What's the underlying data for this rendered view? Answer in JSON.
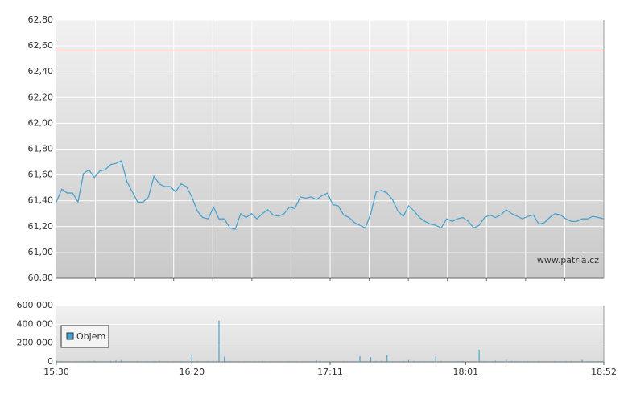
{
  "chart_data": [
    {
      "type": "line",
      "color": "#4aa3cf",
      "x": [
        "15:30",
        "15:32",
        "15:34",
        "15:36",
        "15:38",
        "15:40",
        "15:42",
        "15:44",
        "15:46",
        "15:48",
        "15:50",
        "15:52",
        "15:54",
        "15:56",
        "15:58",
        "16:00",
        "16:02",
        "16:04",
        "16:06",
        "16:08",
        "16:10",
        "16:12",
        "16:14",
        "16:16",
        "16:18",
        "16:20",
        "16:22",
        "16:24",
        "16:26",
        "16:28",
        "16:30",
        "16:32",
        "16:34",
        "16:36",
        "16:38",
        "16:40",
        "16:42",
        "16:44",
        "16:46",
        "16:48",
        "16:50",
        "16:52",
        "16:54",
        "16:56",
        "16:58",
        "17:00",
        "17:02",
        "17:04",
        "17:06",
        "17:08",
        "17:10",
        "17:12",
        "17:14",
        "17:16",
        "17:18",
        "17:20",
        "17:22",
        "17:24",
        "17:26",
        "17:28",
        "17:30",
        "17:32",
        "17:34",
        "17:36",
        "17:38",
        "17:40",
        "17:42",
        "17:44",
        "17:46",
        "17:48",
        "17:50",
        "17:52",
        "17:54",
        "17:56",
        "17:58",
        "18:00",
        "18:02",
        "18:04",
        "18:06",
        "18:08",
        "18:10",
        "18:12",
        "18:14",
        "18:16",
        "18:18",
        "18:20",
        "18:22",
        "18:24",
        "18:26",
        "18:28",
        "18:30",
        "18:32",
        "18:34",
        "18:36",
        "18:38",
        "18:40",
        "18:42",
        "18:44",
        "18:46",
        "18:48",
        "18:50",
        "18:52"
      ],
      "values": [
        61.39,
        61.49,
        61.46,
        61.46,
        61.39,
        61.61,
        61.64,
        61.58,
        61.63,
        61.64,
        61.68,
        61.69,
        61.71,
        61.55,
        61.47,
        61.39,
        61.39,
        61.43,
        61.59,
        61.53,
        61.51,
        61.51,
        61.47,
        61.53,
        61.51,
        61.43,
        61.32,
        61.27,
        61.26,
        61.35,
        61.26,
        61.26,
        61.19,
        61.18,
        61.3,
        61.27,
        61.3,
        61.26,
        61.3,
        61.33,
        61.29,
        61.28,
        61.3,
        61.35,
        61.34,
        61.43,
        61.42,
        61.43,
        61.41,
        61.44,
        61.46,
        61.37,
        61.36,
        61.29,
        61.27,
        61.23,
        61.21,
        61.19,
        61.3,
        61.47,
        61.48,
        61.46,
        61.41,
        61.32,
        61.28,
        61.36,
        61.32,
        61.27,
        61.24,
        61.22,
        61.21,
        61.19,
        61.26,
        61.24,
        61.26,
        61.27,
        61.24,
        61.19,
        61.21,
        61.27,
        61.29,
        61.27,
        61.29,
        61.33,
        61.3,
        61.28,
        61.26,
        61.28,
        61.29,
        61.22,
        61.23,
        61.27,
        61.3,
        61.29,
        61.26,
        61.24,
        61.24,
        61.26,
        61.26,
        61.28,
        61.27,
        61.26
      ],
      "reference_line": 62.56,
      "reference_color": "#e0504a",
      "xlim": [
        "15:30",
        "18:52"
      ],
      "ylim": [
        60.8,
        62.8
      ],
      "yticks": [
        {
          "value": 60.8,
          "label": "60,80"
        },
        {
          "value": 61.0,
          "label": "61,00"
        },
        {
          "value": 61.2,
          "label": "61,20"
        },
        {
          "value": 61.4,
          "label": "61,40"
        },
        {
          "value": 61.6,
          "label": "61,60"
        },
        {
          "value": 61.8,
          "label": "61,80"
        },
        {
          "value": 62.0,
          "label": "62,00"
        },
        {
          "value": 62.2,
          "label": "62,20"
        },
        {
          "value": 62.4,
          "label": "62,40"
        },
        {
          "value": 62.6,
          "label": "62,60"
        },
        {
          "value": 62.8,
          "label": "62,80"
        }
      ],
      "grid": true,
      "watermark": "www.patria.cz"
    },
    {
      "type": "bar",
      "x": [
        "15:30",
        "15:32",
        "15:34",
        "15:36",
        "15:38",
        "15:40",
        "15:42",
        "15:44",
        "15:46",
        "15:48",
        "15:50",
        "15:52",
        "15:54",
        "15:56",
        "15:58",
        "16:00",
        "16:02",
        "16:04",
        "16:06",
        "16:08",
        "16:10",
        "16:12",
        "16:14",
        "16:16",
        "16:18",
        "16:20",
        "16:22",
        "16:24",
        "16:26",
        "16:28",
        "16:30",
        "16:32",
        "16:34",
        "16:36",
        "16:38",
        "16:40",
        "16:42",
        "16:44",
        "16:46",
        "16:48",
        "16:50",
        "16:52",
        "16:54",
        "16:56",
        "16:58",
        "17:00",
        "17:02",
        "17:04",
        "17:06",
        "17:08",
        "17:10",
        "17:12",
        "17:14",
        "17:16",
        "17:18",
        "17:20",
        "17:22",
        "17:24",
        "17:26",
        "17:28",
        "17:30",
        "17:32",
        "17:34",
        "17:36",
        "17:38",
        "17:40",
        "17:42",
        "17:44",
        "17:46",
        "17:48",
        "17:50",
        "17:52",
        "17:54",
        "17:56",
        "17:58",
        "18:00",
        "18:02",
        "18:04",
        "18:06",
        "18:08",
        "18:10",
        "18:12",
        "18:14",
        "18:16",
        "18:18",
        "18:20",
        "18:22",
        "18:24",
        "18:26",
        "18:28",
        "18:30",
        "18:32",
        "18:34",
        "18:36",
        "18:38",
        "18:40",
        "18:42",
        "18:44",
        "18:46",
        "18:48",
        "18:50",
        "18:52"
      ],
      "series": [
        {
          "name": "Objem",
          "color": "#4aa3cf",
          "values": [
            15000,
            8000,
            6000,
            5000,
            6000,
            7000,
            9000,
            12000,
            8000,
            6000,
            10000,
            14000,
            20000,
            7000,
            6000,
            9000,
            5000,
            6000,
            8000,
            12000,
            6000,
            5000,
            7000,
            8000,
            6000,
            75000,
            10000,
            6000,
            8000,
            7000,
            440000,
            55000,
            8000,
            6000,
            5000,
            7000,
            5000,
            6000,
            9000,
            5000,
            6000,
            8000,
            5000,
            7000,
            6000,
            5000,
            8000,
            6000,
            15000,
            5000,
            7000,
            9000,
            6000,
            8000,
            5000,
            7000,
            60000,
            8000,
            50000,
            10000,
            12000,
            70000,
            8000,
            6000,
            9000,
            20000,
            10000,
            7000,
            8000,
            6000,
            60000,
            9000,
            7000,
            6000,
            8000,
            10000,
            7000,
            8000,
            130000,
            9000,
            7000,
            12000,
            8000,
            20000,
            10000,
            8000,
            6000,
            9000,
            7000,
            10000,
            8000,
            6000,
            9000,
            7000,
            8000,
            10000,
            6000,
            20000,
            8000,
            7000,
            9000,
            6000
          ]
        }
      ],
      "xlim": [
        "15:30",
        "18:52"
      ],
      "xticks": [
        "15:30",
        "16:20",
        "17:11",
        "18:01",
        "18:52"
      ],
      "ylim": [
        0,
        600000
      ],
      "yticks": [
        0,
        {
          "value": 200000,
          "label": "200 000"
        },
        {
          "value": 400000,
          "label": "400 000"
        },
        {
          "value": 600000,
          "label": "600 000"
        }
      ],
      "grid": true,
      "legend": "upper left"
    }
  ]
}
